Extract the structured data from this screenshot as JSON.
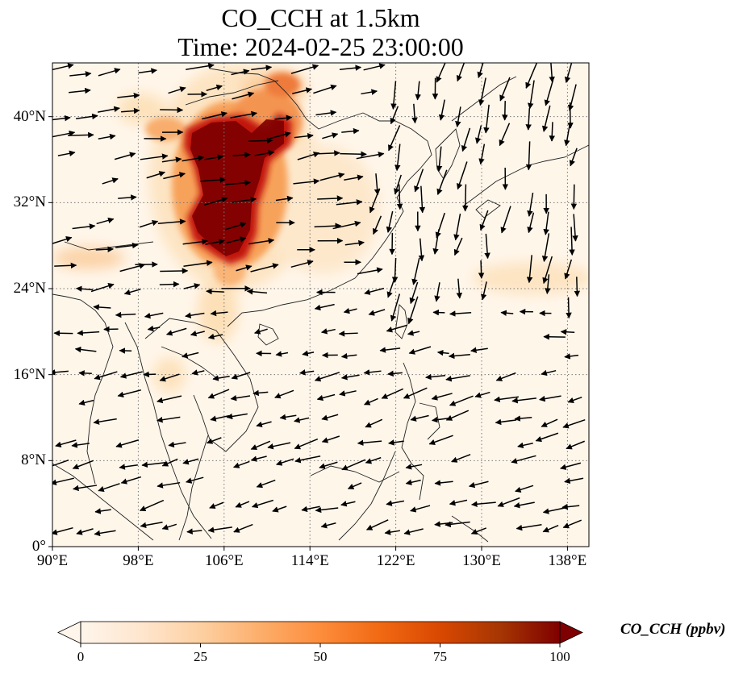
{
  "title_line1": "CO_CCH at 1.5km",
  "title_line2": "Time: 2024-02-25 23:00:00",
  "map": {
    "lon_range": [
      90,
      140
    ],
    "lat_range": [
      0,
      45
    ],
    "lon_ticks": [
      {
        "value": 90,
        "label": "90°E"
      },
      {
        "value": 98,
        "label": "98°E"
      },
      {
        "value": 106,
        "label": "106°E"
      },
      {
        "value": 114,
        "label": "114°E"
      },
      {
        "value": 122,
        "label": "122°E"
      },
      {
        "value": 130,
        "label": "130°E"
      },
      {
        "value": 138,
        "label": "138°E"
      }
    ],
    "lat_ticks": [
      {
        "value": 0,
        "label": "0°"
      },
      {
        "value": 8,
        "label": "8°N"
      },
      {
        "value": 16,
        "label": "16°N"
      },
      {
        "value": 24,
        "label": "24°N"
      },
      {
        "value": 32,
        "label": "32°N"
      },
      {
        "value": 40,
        "label": "40°N"
      }
    ],
    "gridlines": "dotted",
    "colors": {
      "ocean": "#fff6ea",
      "low": "#fde4c2",
      "mid": "#f7a25a",
      "high": "#c2160c",
      "max": "#7f0000",
      "coast": "#222222",
      "arrow": "#000000"
    }
  },
  "colorbar": {
    "label": "CO_CCH (ppbv)",
    "ticks": [
      {
        "value": 0,
        "label": "0"
      },
      {
        "value": 25,
        "label": "25"
      },
      {
        "value": 50,
        "label": "50"
      },
      {
        "value": 75,
        "label": "75"
      },
      {
        "value": 100,
        "label": "100"
      }
    ],
    "range": [
      0,
      100
    ],
    "extend": "both",
    "colormap": [
      "#fff5eb",
      "#fee6ce",
      "#fdd0a2",
      "#fdae6b",
      "#fd8d3c",
      "#f16913",
      "#d94801",
      "#a63603",
      "#7f0000"
    ]
  }
}
